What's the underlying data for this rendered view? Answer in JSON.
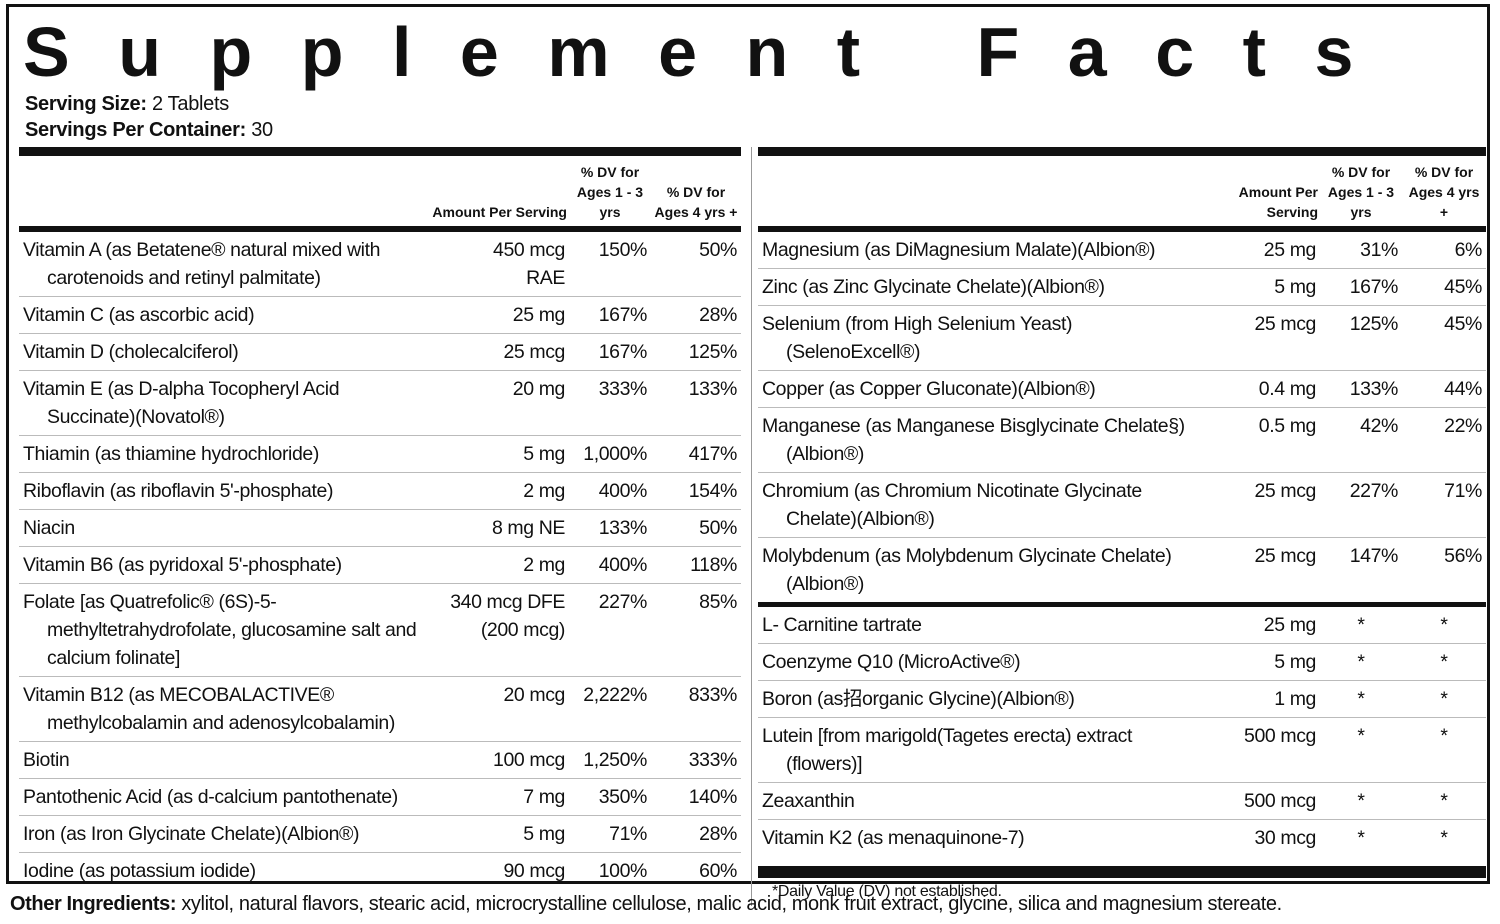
{
  "title": "Supplement Facts",
  "serving_size": {
    "label": "Serving Size:",
    "value": "2 Tablets"
  },
  "servings_per_container": {
    "label": "Servings Per Container:",
    "value": "30"
  },
  "header": {
    "amount": "Amount Per Serving",
    "dv1": "% DV for Ages 1 - 3 yrs",
    "dv2": "% DV for Ages 4 yrs +"
  },
  "left": [
    {
      "name": "Vitamin A (as Betatene® natural mixed with carotenoids and retinyl palmitate)",
      "amount": "450 mcg\nRAE",
      "dv1": "150%",
      "dv2": "50%"
    },
    {
      "name": "Vitamin C (as ascorbic acid)",
      "amount": "25 mg",
      "dv1": "167%",
      "dv2": "28%"
    },
    {
      "name": "Vitamin D (cholecalciferol)",
      "amount": "25 mcg",
      "dv1": "167%",
      "dv2": "125%"
    },
    {
      "name": "Vitamin E (as D-alpha Tocopheryl Acid Succinate)(Novatol®)",
      "amount": "20 mg",
      "dv1": "333%",
      "dv2": "133%"
    },
    {
      "name": "Thiamin (as thiamine hydrochloride)",
      "amount": "5 mg",
      "dv1": "1,000%",
      "dv2": "417%"
    },
    {
      "name": "Riboflavin (as riboflavin 5'-phosphate)",
      "amount": "2 mg",
      "dv1": "400%",
      "dv2": "154%"
    },
    {
      "name": "Niacin",
      "amount": "8 mg NE",
      "dv1": "133%",
      "dv2": "50%"
    },
    {
      "name": "Vitamin B6 (as pyridoxal 5'-phosphate)",
      "amount": "2 mg",
      "dv1": "400%",
      "dv2": "118%"
    },
    {
      "name": "Folate [as Quatrefolic® (6S)-5-methyltetrahydrofolate, glucosamine salt and calcium folinate]",
      "amount": "340 mcg DFE\n(200 mcg)",
      "dv1": "227%",
      "dv2": "85%"
    },
    {
      "name": "Vitamin B12 (as MECOBALACTIVE® methylcobalamin and adenosylcobalamin)",
      "amount": "20 mcg",
      "dv1": "2,222%",
      "dv2": "833%"
    },
    {
      "name": "Biotin",
      "amount": "100 mcg",
      "dv1": "1,250%",
      "dv2": "333%"
    },
    {
      "name": "Pantothenic Acid (as d-calcium pantothenate)",
      "amount": "7 mg",
      "dv1": "350%",
      "dv2": "140%"
    },
    {
      "name": "Iron (as Iron Glycinate Chelate)(Albion®)",
      "amount": "5 mg",
      "dv1": "71%",
      "dv2": "28%"
    },
    {
      "name": "Iodine (as potassium iodide)",
      "amount": "90 mcg",
      "dv1": "100%",
      "dv2": "60%"
    }
  ],
  "right": [
    {
      "name": "Magnesium (as DiMagnesium Malate)(Albion®)",
      "amount": "25 mg",
      "dv1": "31%",
      "dv2": "6%"
    },
    {
      "name": "Zinc (as Zinc Glycinate Chelate)(Albion®)",
      "amount": "5 mg",
      "dv1": "167%",
      "dv2": "45%"
    },
    {
      "name": "Selenium (from High Selenium Yeast)(SelenoExcell®)",
      "amount": "25 mcg",
      "dv1": "125%",
      "dv2": "45%"
    },
    {
      "name": "Copper (as Copper Gluconate)(Albion®)",
      "amount": "0.4 mg",
      "dv1": "133%",
      "dv2": "44%"
    },
    {
      "name": "Manganese (as Manganese Bisglycinate Chelate§)(Albion®)",
      "amount": "0.5 mg",
      "dv1": "42%",
      "dv2": "22%"
    },
    {
      "name": "Chromium (as Chromium Nicotinate Glycinate Chelate)(Albion®)",
      "amount": "25 mcg",
      "dv1": "227%",
      "dv2": "71%"
    },
    {
      "name": "Molybdenum (as Molybdenum Glycinate Chelate)(Albion®)",
      "amount": "25 mcg",
      "dv1": "147%",
      "dv2": "56%"
    }
  ],
  "right_extra": [
    {
      "name": "L- Carnitine tartrate",
      "amount": "25 mg",
      "dv1": "*",
      "dv2": "*"
    },
    {
      "name": "Coenzyme Q10 (MicroActive®)",
      "amount": "5 mg",
      "dv1": "*",
      "dv2": "*"
    },
    {
      "name": "Boron (as招organic Glycine)(Albion®)",
      "amount": "1 mg",
      "dv1": "*",
      "dv2": "*"
    },
    {
      "name": "Lutein [from marigold(Tagetes erecta) extract (flowers)]",
      "amount": "500 mcg",
      "dv1": "*",
      "dv2": "*"
    },
    {
      "name": "Zeaxanthin",
      "amount": "500 mcg",
      "dv1": "*",
      "dv2": "*"
    },
    {
      "name": "Vitamin K2 (as menaquinone-7)",
      "amount": "30 mcg",
      "dv1": "*",
      "dv2": "*"
    }
  ],
  "footnote": "*Daily Value (DV) not established.",
  "other_ingredients": {
    "label": "Other Ingredients:",
    "text": "xylitol, natural flavors, stearic acid, microcrystalline cellulose, malic acid, monk fruit extract, glycine, silica and magnesium stereate."
  }
}
